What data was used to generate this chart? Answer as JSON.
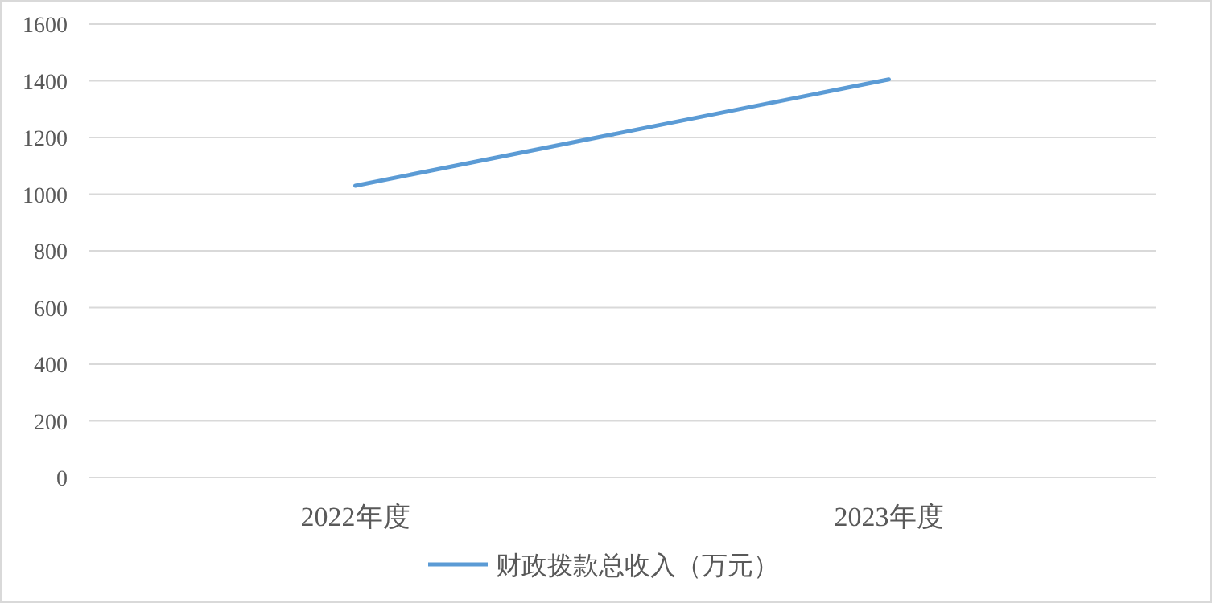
{
  "chart_data": {
    "type": "line",
    "categories": [
      "2022年度",
      "2023年度"
    ],
    "series": [
      {
        "name": "财政拨款总收入（万元）",
        "color": "#5b9bd5",
        "values": [
          1030,
          1405
        ]
      }
    ],
    "ylim": [
      0,
      1600
    ],
    "yticks": [
      0,
      200,
      400,
      600,
      800,
      1000,
      1200,
      1400,
      1600
    ],
    "grid": "y",
    "legend": "bottom",
    "marker": "none",
    "line_style": "solid"
  }
}
